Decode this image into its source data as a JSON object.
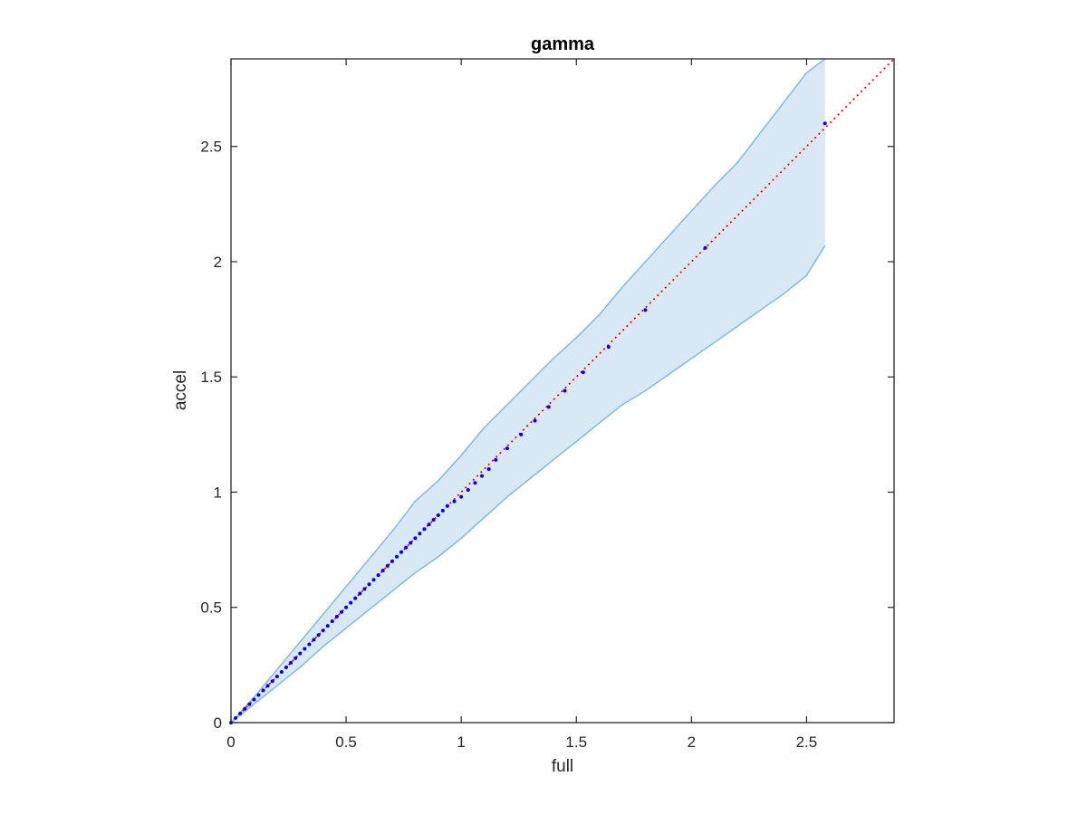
{
  "chart_data": {
    "type": "scatter",
    "title": "gamma",
    "xlabel": "full",
    "ylabel": "accel",
    "xlim": [
      0,
      2.88
    ],
    "ylim": [
      0,
      2.88
    ],
    "xticks": [
      0,
      0.5,
      1,
      1.5,
      2,
      2.5
    ],
    "yticks": [
      0,
      0.5,
      1,
      1.5,
      2,
      2.5
    ],
    "xtick_labels": [
      "0",
      "0.5",
      "1",
      "1.5",
      "2",
      "2.5"
    ],
    "ytick_labels": [
      "0",
      "0.5",
      "1",
      "1.5",
      "2",
      "2.5"
    ],
    "grid": false,
    "reference_line": {
      "style": "dotted",
      "color": "#ff0000",
      "x": [
        0,
        2.88
      ],
      "y": [
        0,
        2.88
      ]
    },
    "band": {
      "fill": "#d8e8f4",
      "stroke": "#86bde0",
      "x": [
        0,
        0.1,
        0.2,
        0.3,
        0.4,
        0.5,
        0.6,
        0.7,
        0.8,
        0.9,
        1.0,
        1.1,
        1.2,
        1.3,
        1.4,
        1.5,
        1.6,
        1.7,
        1.8,
        1.9,
        2.0,
        2.1,
        2.2,
        2.3,
        2.4,
        2.5,
        2.58
      ],
      "upper": [
        0,
        0.11,
        0.23,
        0.35,
        0.47,
        0.59,
        0.71,
        0.83,
        0.96,
        1.05,
        1.16,
        1.28,
        1.38,
        1.48,
        1.58,
        1.67,
        1.77,
        1.89,
        2.0,
        2.11,
        2.22,
        2.33,
        2.43,
        2.56,
        2.69,
        2.82,
        2.88
      ],
      "lower": [
        0,
        0.08,
        0.16,
        0.24,
        0.33,
        0.41,
        0.49,
        0.57,
        0.65,
        0.72,
        0.8,
        0.89,
        0.98,
        1.06,
        1.14,
        1.22,
        1.3,
        1.38,
        1.44,
        1.51,
        1.58,
        1.65,
        1.72,
        1.79,
        1.86,
        1.94,
        2.07
      ]
    },
    "points_color": "#0000ff",
    "points": {
      "x": [
        0,
        0.02,
        0.04,
        0.06,
        0.08,
        0.1,
        0.12,
        0.14,
        0.16,
        0.18,
        0.2,
        0.22,
        0.24,
        0.26,
        0.28,
        0.3,
        0.32,
        0.34,
        0.36,
        0.38,
        0.4,
        0.42,
        0.44,
        0.46,
        0.48,
        0.5,
        0.52,
        0.54,
        0.56,
        0.58,
        0.6,
        0.62,
        0.64,
        0.66,
        0.68,
        0.7,
        0.72,
        0.74,
        0.76,
        0.78,
        0.8,
        0.82,
        0.84,
        0.86,
        0.88,
        0.9,
        0.92,
        0.94,
        0.97,
        1.0,
        1.03,
        1.06,
        1.09,
        1.12,
        1.15,
        1.2,
        1.26,
        1.32,
        1.38,
        1.45,
        1.53,
        1.64,
        1.8,
        2.06,
        2.58
      ],
      "y": [
        0,
        0.02,
        0.04,
        0.06,
        0.08,
        0.1,
        0.12,
        0.14,
        0.16,
        0.18,
        0.2,
        0.22,
        0.24,
        0.26,
        0.28,
        0.3,
        0.32,
        0.34,
        0.36,
        0.38,
        0.4,
        0.42,
        0.44,
        0.46,
        0.48,
        0.5,
        0.52,
        0.54,
        0.56,
        0.58,
        0.6,
        0.62,
        0.64,
        0.66,
        0.68,
        0.7,
        0.72,
        0.74,
        0.76,
        0.78,
        0.8,
        0.82,
        0.84,
        0.86,
        0.88,
        0.9,
        0.92,
        0.94,
        0.96,
        0.98,
        1.01,
        1.04,
        1.07,
        1.1,
        1.14,
        1.19,
        1.25,
        1.31,
        1.37,
        1.44,
        1.52,
        1.63,
        1.79,
        2.06,
        2.6
      ]
    }
  }
}
